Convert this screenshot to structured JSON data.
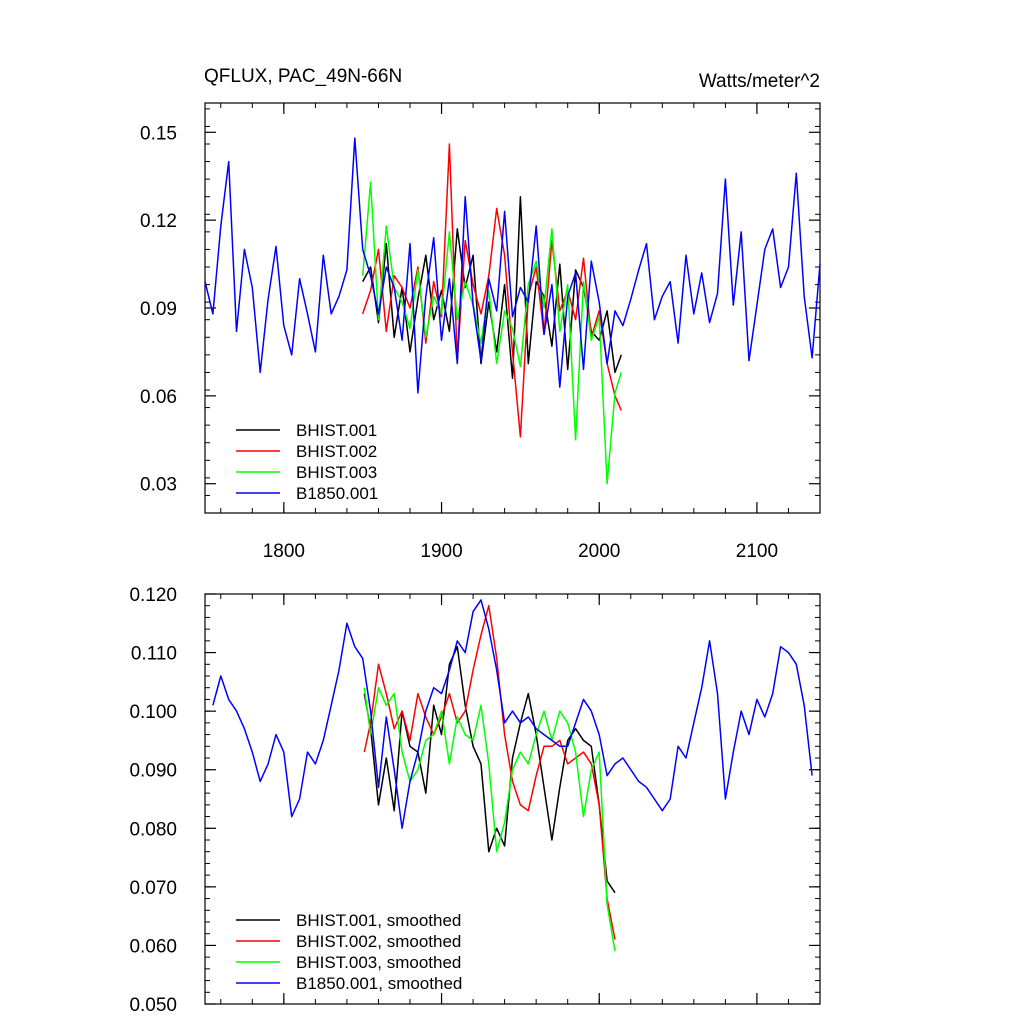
{
  "chart_data": [
    {
      "type": "line",
      "title": "QFLUX, PAC_49N-66N",
      "units": "Watts/meter^2",
      "xlim": [
        1750,
        2140
      ],
      "ylim": [
        0.02,
        0.16
      ],
      "xticks": [
        1800,
        1900,
        2000,
        2100
      ],
      "yticks": [
        0.03,
        0.06,
        0.09,
        0.12,
        0.15
      ],
      "ytick_labels": [
        "0.03",
        "0.06",
        "0.09",
        "0.12",
        "0.15"
      ],
      "legend_position": "bottom-left",
      "series": [
        {
          "name": "BHIST.001",
          "color": "#000000",
          "x": [
            1850,
            1855,
            1860,
            1865,
            1870,
            1875,
            1880,
            1885,
            1890,
            1895,
            1900,
            1905,
            1910,
            1915,
            1920,
            1925,
            1930,
            1935,
            1940,
            1945,
            1950,
            1955,
            1960,
            1965,
            1970,
            1975,
            1980,
            1985,
            1990,
            1995,
            2000,
            2005,
            2010,
            2014
          ],
          "y": [
            0.099,
            0.104,
            0.085,
            0.112,
            0.08,
            0.097,
            0.075,
            0.093,
            0.108,
            0.086,
            0.096,
            0.082,
            0.117,
            0.097,
            0.108,
            0.071,
            0.092,
            0.075,
            0.098,
            0.066,
            0.128,
            0.071,
            0.099,
            0.094,
            0.077,
            0.105,
            0.069,
            0.103,
            0.097,
            0.082,
            0.079,
            0.089,
            0.068,
            0.074
          ]
        },
        {
          "name": "BHIST.002",
          "color": "#ff0000",
          "x": [
            1850,
            1855,
            1860,
            1865,
            1870,
            1875,
            1880,
            1885,
            1890,
            1895,
            1900,
            1905,
            1910,
            1915,
            1920,
            1925,
            1930,
            1935,
            1940,
            1945,
            1950,
            1955,
            1960,
            1965,
            1970,
            1975,
            1980,
            1985,
            1990,
            1995,
            2000,
            2005,
            2010,
            2014
          ],
          "y": [
            0.088,
            0.096,
            0.11,
            0.082,
            0.101,
            0.097,
            0.09,
            0.104,
            0.078,
            0.099,
            0.087,
            0.146,
            0.072,
            0.113,
            0.098,
            0.088,
            0.101,
            0.124,
            0.108,
            0.075,
            0.046,
            0.094,
            0.104,
            0.081,
            0.113,
            0.089,
            0.096,
            0.086,
            0.107,
            0.08,
            0.089,
            0.071,
            0.06,
            0.055
          ]
        },
        {
          "name": "BHIST.003",
          "color": "#00ff00",
          "x": [
            1850,
            1855,
            1860,
            1865,
            1870,
            1875,
            1880,
            1885,
            1890,
            1895,
            1900,
            1905,
            1910,
            1915,
            1920,
            1925,
            1930,
            1935,
            1940,
            1945,
            1950,
            1955,
            1960,
            1965,
            1970,
            1975,
            1980,
            1985,
            1990,
            1995,
            2000,
            2005,
            2010,
            2014
          ],
          "y": [
            0.101,
            0.133,
            0.086,
            0.118,
            0.097,
            0.092,
            0.083,
            0.103,
            0.08,
            0.094,
            0.088,
            0.116,
            0.086,
            0.099,
            0.091,
            0.078,
            0.096,
            0.071,
            0.089,
            0.083,
            0.07,
            0.098,
            0.106,
            0.09,
            0.117,
            0.082,
            0.098,
            0.045,
            0.099,
            0.079,
            0.087,
            0.03,
            0.061,
            0.068
          ]
        },
        {
          "name": "B1850.001",
          "color": "#0000ff",
          "x": [
            1750,
            1755,
            1760,
            1765,
            1770,
            1775,
            1780,
            1785,
            1790,
            1795,
            1800,
            1805,
            1810,
            1815,
            1820,
            1825,
            1830,
            1835,
            1840,
            1845,
            1850,
            1855,
            1860,
            1865,
            1870,
            1875,
            1880,
            1885,
            1890,
            1895,
            1900,
            1905,
            1910,
            1915,
            1920,
            1925,
            1930,
            1935,
            1940,
            1945,
            1950,
            1955,
            1960,
            1965,
            1970,
            1975,
            1980,
            1985,
            1990,
            1995,
            2000,
            2005,
            2010,
            2015,
            2020,
            2025,
            2030,
            2035,
            2040,
            2045,
            2050,
            2055,
            2060,
            2065,
            2070,
            2075,
            2080,
            2085,
            2090,
            2095,
            2100,
            2105,
            2110,
            2115,
            2120,
            2125,
            2130,
            2135,
            2140
          ],
          "y": [
            0.099,
            0.088,
            0.118,
            0.14,
            0.082,
            0.11,
            0.097,
            0.068,
            0.093,
            0.111,
            0.084,
            0.074,
            0.1,
            0.088,
            0.075,
            0.108,
            0.088,
            0.094,
            0.103,
            0.148,
            0.11,
            0.101,
            0.088,
            0.104,
            0.097,
            0.079,
            0.112,
            0.061,
            0.094,
            0.114,
            0.079,
            0.1,
            0.071,
            0.128,
            0.091,
            0.072,
            0.1,
            0.089,
            0.123,
            0.087,
            0.097,
            0.092,
            0.118,
            0.081,
            0.098,
            0.063,
            0.094,
            0.102,
            0.069,
            0.106,
            0.092,
            0.071,
            0.089,
            0.084,
            0.093,
            0.103,
            0.112,
            0.086,
            0.094,
            0.099,
            0.078,
            0.108,
            0.088,
            0.102,
            0.085,
            0.095,
            0.134,
            0.091,
            0.116,
            0.072,
            0.091,
            0.11,
            0.117,
            0.097,
            0.104,
            0.136,
            0.094,
            0.073,
            0.105
          ]
        }
      ]
    },
    {
      "type": "line",
      "xlim": [
        1750,
        2140
      ],
      "ylim": [
        0.05,
        0.12
      ],
      "xticks": [
        1800,
        1900,
        2000,
        2100
      ],
      "yticks": [
        0.05,
        0.06,
        0.07,
        0.08,
        0.09,
        0.1,
        0.11,
        0.12
      ],
      "ytick_labels": [
        "0.050",
        "0.060",
        "0.070",
        "0.080",
        "0.090",
        "0.100",
        "0.110",
        "0.120"
      ],
      "legend_position": "bottom-left",
      "series": [
        {
          "name": "BHIST.001, smoothed",
          "color": "#000000",
          "x": [
            1851,
            1855,
            1860,
            1865,
            1870,
            1875,
            1880,
            1885,
            1890,
            1895,
            1900,
            1905,
            1910,
            1915,
            1920,
            1925,
            1930,
            1935,
            1940,
            1945,
            1950,
            1955,
            1960,
            1965,
            1970,
            1975,
            1980,
            1985,
            1990,
            1995,
            2000,
            2005,
            2010
          ],
          "y": [
            0.103,
            0.097,
            0.084,
            0.092,
            0.083,
            0.1,
            0.094,
            0.093,
            0.086,
            0.101,
            0.096,
            0.108,
            0.111,
            0.101,
            0.094,
            0.091,
            0.076,
            0.08,
            0.077,
            0.092,
            0.098,
            0.103,
            0.096,
            0.087,
            0.078,
            0.087,
            0.095,
            0.097,
            0.095,
            0.094,
            0.084,
            0.071,
            0.069
          ]
        },
        {
          "name": "BHIST.002, smoothed",
          "color": "#ff0000",
          "x": [
            1851,
            1855,
            1860,
            1865,
            1870,
            1875,
            1880,
            1885,
            1890,
            1895,
            1900,
            1905,
            1910,
            1915,
            1920,
            1925,
            1930,
            1935,
            1940,
            1945,
            1950,
            1955,
            1960,
            1965,
            1970,
            1975,
            1980,
            1985,
            1990,
            1995,
            2000,
            2005,
            2010
          ],
          "y": [
            0.093,
            0.098,
            0.108,
            0.103,
            0.097,
            0.1,
            0.095,
            0.103,
            0.099,
            0.096,
            0.099,
            0.103,
            0.098,
            0.1,
            0.107,
            0.113,
            0.118,
            0.109,
            0.096,
            0.088,
            0.084,
            0.083,
            0.089,
            0.094,
            0.094,
            0.095,
            0.091,
            0.092,
            0.093,
            0.091,
            0.084,
            0.068,
            0.061
          ]
        },
        {
          "name": "BHIST.003, smoothed",
          "color": "#00ff00",
          "x": [
            1851,
            1855,
            1860,
            1865,
            1870,
            1875,
            1880,
            1885,
            1890,
            1895,
            1900,
            1905,
            1910,
            1915,
            1920,
            1925,
            1930,
            1935,
            1940,
            1945,
            1950,
            1955,
            1960,
            1965,
            1970,
            1975,
            1980,
            1985,
            1990,
            1995,
            2000,
            2005,
            2010
          ],
          "y": [
            0.104,
            0.096,
            0.104,
            0.101,
            0.103,
            0.093,
            0.088,
            0.09,
            0.095,
            0.096,
            0.1,
            0.091,
            0.099,
            0.096,
            0.095,
            0.101,
            0.091,
            0.076,
            0.081,
            0.09,
            0.093,
            0.091,
            0.096,
            0.1,
            0.095,
            0.1,
            0.098,
            0.093,
            0.082,
            0.09,
            0.093,
            0.067,
            0.059
          ]
        },
        {
          "name": "B1850.001, smoothed",
          "color": "#0000ff",
          "x": [
            1755,
            1760,
            1765,
            1770,
            1775,
            1780,
            1785,
            1790,
            1795,
            1800,
            1805,
            1810,
            1815,
            1820,
            1825,
            1830,
            1835,
            1840,
            1845,
            1850,
            1855,
            1860,
            1865,
            1870,
            1875,
            1880,
            1885,
            1890,
            1895,
            1900,
            1905,
            1910,
            1915,
            1920,
            1925,
            1930,
            1935,
            1940,
            1945,
            1950,
            1955,
            1960,
            1965,
            1970,
            1975,
            1980,
            1985,
            1990,
            1995,
            2000,
            2005,
            2010,
            2015,
            2020,
            2025,
            2030,
            2035,
            2040,
            2045,
            2050,
            2055,
            2060,
            2065,
            2070,
            2075,
            2080,
            2085,
            2090,
            2095,
            2100,
            2105,
            2110,
            2115,
            2120,
            2125,
            2130,
            2135
          ],
          "y": [
            0.101,
            0.106,
            0.102,
            0.1,
            0.097,
            0.093,
            0.088,
            0.091,
            0.096,
            0.093,
            0.082,
            0.085,
            0.093,
            0.091,
            0.095,
            0.101,
            0.107,
            0.115,
            0.111,
            0.109,
            0.1,
            0.087,
            0.099,
            0.09,
            0.08,
            0.088,
            0.093,
            0.1,
            0.104,
            0.103,
            0.107,
            0.112,
            0.11,
            0.117,
            0.119,
            0.114,
            0.107,
            0.098,
            0.1,
            0.098,
            0.099,
            0.097,
            0.096,
            0.095,
            0.094,
            0.094,
            0.098,
            0.102,
            0.1,
            0.096,
            0.089,
            0.091,
            0.092,
            0.09,
            0.088,
            0.087,
            0.085,
            0.083,
            0.085,
            0.094,
            0.092,
            0.098,
            0.104,
            0.112,
            0.103,
            0.085,
            0.093,
            0.1,
            0.096,
            0.102,
            0.099,
            0.103,
            0.111,
            0.11,
            0.108,
            0.101,
            0.089
          ]
        }
      ]
    }
  ]
}
